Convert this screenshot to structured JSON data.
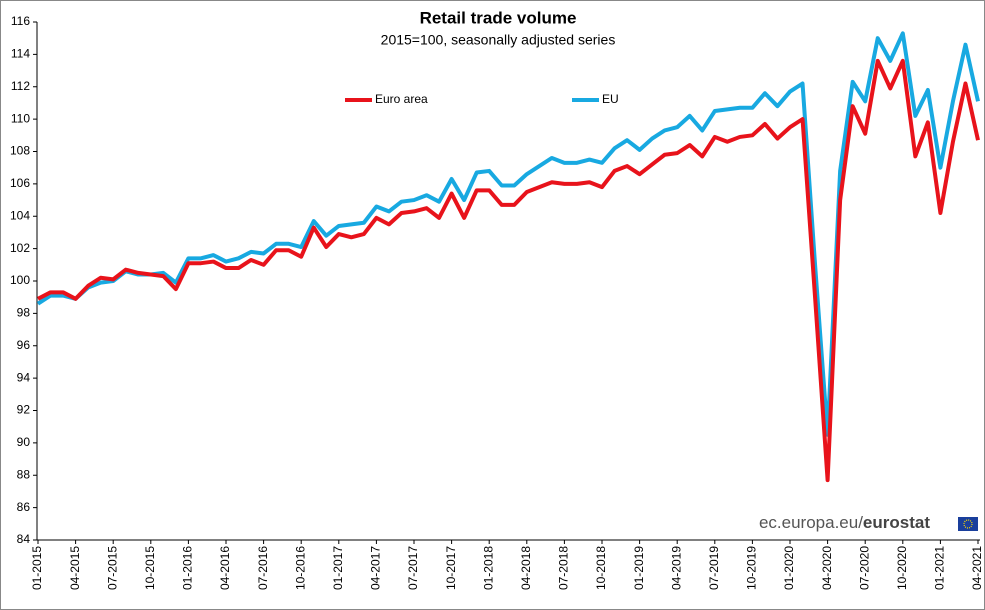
{
  "chart_data": {
    "type": "line",
    "title": "Retail trade volume",
    "subtitle": "2015=100, seasonally adjusted series",
    "source": [
      "ec.europa.eu/",
      "eurostat"
    ],
    "categories": [
      "01-2015",
      null,
      null,
      "04-2015",
      null,
      null,
      "07-2015",
      null,
      null,
      "10-2015",
      null,
      null,
      "01-2016",
      null,
      null,
      "04-2016",
      null,
      null,
      "07-2016",
      null,
      null,
      "10-2016",
      null,
      null,
      "01-2017",
      null,
      null,
      "04-2017",
      null,
      null,
      "07-2017",
      null,
      null,
      "10-2017",
      null,
      null,
      "01-2018",
      null,
      null,
      "04-2018",
      null,
      null,
      "07-2018",
      null,
      null,
      "10-2018",
      null,
      null,
      "01-2019",
      null,
      null,
      "04-2019",
      null,
      null,
      "07-2019",
      null,
      null,
      "10-2019",
      null,
      null,
      "01-2020",
      null,
      null,
      "04-2020",
      null,
      null,
      "07-2020",
      null,
      null,
      "10-2020",
      null,
      null,
      "01-2021",
      null,
      null,
      "04-2021"
    ],
    "series": [
      {
        "name": "Euro area",
        "color": "#e8131b",
        "values": [
          98.9,
          99.3,
          99.3,
          98.9,
          99.7,
          100.2,
          100.1,
          100.7,
          100.5,
          100.4,
          100.3,
          99.5,
          101.1,
          101.1,
          101.2,
          100.8,
          100.8,
          101.3,
          101.0,
          101.9,
          101.9,
          101.5,
          103.3,
          102.1,
          102.9,
          102.7,
          102.9,
          103.9,
          103.5,
          104.2,
          104.3,
          104.5,
          103.9,
          105.4,
          103.9,
          105.6,
          105.6,
          104.7,
          104.7,
          105.5,
          105.8,
          106.1,
          106.0,
          106.0,
          106.1,
          105.8,
          106.8,
          107.1,
          106.6,
          107.2,
          107.8,
          107.9,
          108.4,
          107.7,
          108.9,
          108.6,
          108.9,
          109.0,
          109.7,
          108.8,
          109.5,
          110.0,
          99.0,
          87.7,
          105.0,
          110.8,
          109.1,
          113.6,
          111.9,
          113.6,
          107.7,
          109.8,
          104.2,
          108.6,
          112.2,
          108.7
        ]
      },
      {
        "name": "EU",
        "color": "#18a9e1",
        "values": [
          98.6,
          99.1,
          99.1,
          98.9,
          99.6,
          99.9,
          100.0,
          100.6,
          100.4,
          100.4,
          100.5,
          99.9,
          101.4,
          101.4,
          101.6,
          101.2,
          101.4,
          101.8,
          101.7,
          102.3,
          102.3,
          102.1,
          103.7,
          102.8,
          103.4,
          103.5,
          103.6,
          104.6,
          104.3,
          104.9,
          105.0,
          105.3,
          104.9,
          106.3,
          105.0,
          106.7,
          106.8,
          105.9,
          105.9,
          106.6,
          107.1,
          107.6,
          107.3,
          107.3,
          107.5,
          107.3,
          108.2,
          108.7,
          108.1,
          108.8,
          109.3,
          109.5,
          110.2,
          109.3,
          110.5,
          110.6,
          110.7,
          110.7,
          111.6,
          110.8,
          111.7,
          112.2,
          101.0,
          90.5,
          106.8,
          112.3,
          111.1,
          115.0,
          113.6,
          115.3,
          110.2,
          111.8,
          107.0,
          111.1,
          114.6,
          111.1
        ]
      }
    ],
    "ylim": [
      84,
      116
    ],
    "yticks": [
      84,
      86,
      88,
      90,
      92,
      94,
      96,
      98,
      100,
      102,
      104,
      106,
      108,
      110,
      112,
      114,
      116
    ],
    "grid": false
  }
}
